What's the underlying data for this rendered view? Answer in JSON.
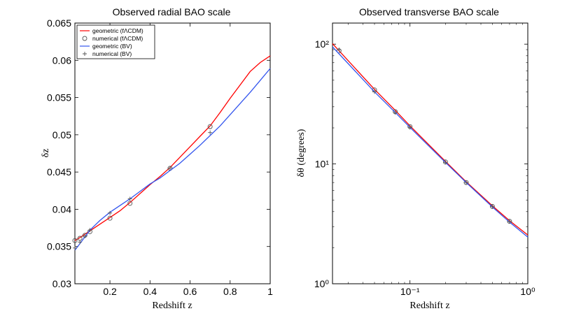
{
  "chart_data": [
    {
      "type": "line",
      "title": "Observed radial BAO scale",
      "xlabel": "Redshift z",
      "ylabel": "δz",
      "xlim": [
        0.025,
        1.0
      ],
      "ylim": [
        0.03,
        0.065
      ],
      "xticks": [
        0.2,
        0.4,
        0.6,
        0.8,
        1.0
      ],
      "xtick_labels": [
        "0.2",
        "0.4",
        "0.6",
        "0.8",
        "1"
      ],
      "yticks": [
        0.03,
        0.035,
        0.04,
        0.045,
        0.05,
        0.055,
        0.06,
        0.065
      ],
      "ytick_labels": [
        "0.03",
        "0.035",
        "0.04",
        "0.045",
        "0.05",
        "0.055",
        "0.06",
        "0.065"
      ],
      "legend_position": "top-left",
      "series": [
        {
          "name": "geometric (fΛCDM)",
          "kind": "line",
          "color": "#ff0000",
          "x": [
            0.025,
            0.05,
            0.1,
            0.15,
            0.2,
            0.25,
            0.3,
            0.35,
            0.4,
            0.45,
            0.5,
            0.55,
            0.6,
            0.65,
            0.7,
            0.75,
            0.8,
            0.85,
            0.9,
            0.95,
            1.0
          ],
          "y": [
            0.0358,
            0.0362,
            0.0371,
            0.038,
            0.0389,
            0.0398,
            0.0409,
            0.0421,
            0.0433,
            0.0444,
            0.0456,
            0.047,
            0.0484,
            0.0498,
            0.0512,
            0.053,
            0.0549,
            0.0567,
            0.0585,
            0.0597,
            0.0606
          ]
        },
        {
          "name": "numerical (fΛCDM)",
          "kind": "marker-circle",
          "color": "#555555",
          "x": [
            0.025,
            0.05,
            0.075,
            0.1,
            0.2,
            0.3,
            0.5,
            0.7
          ],
          "y": [
            0.0358,
            0.0361,
            0.0365,
            0.037,
            0.0388,
            0.0408,
            0.0455,
            0.0511
          ]
        },
        {
          "name": "geometric (BV)",
          "kind": "line",
          "color": "#3355ee",
          "x": [
            0.025,
            0.05,
            0.1,
            0.15,
            0.2,
            0.25,
            0.3,
            0.35,
            0.4,
            0.45,
            0.5,
            0.55,
            0.6,
            0.65,
            0.7,
            0.75,
            0.8,
            0.85,
            0.9,
            0.95,
            1.0
          ],
          "y": [
            0.0345,
            0.0354,
            0.0372,
            0.0385,
            0.0396,
            0.0405,
            0.0414,
            0.0424,
            0.0434,
            0.0442,
            0.0452,
            0.0462,
            0.0474,
            0.0486,
            0.0499,
            0.0512,
            0.0527,
            0.0542,
            0.0557,
            0.0573,
            0.0589
          ]
        },
        {
          "name": "numerical (BV)",
          "kind": "marker-plus",
          "color": "#555555",
          "x": [
            0.025,
            0.05,
            0.075,
            0.1,
            0.2,
            0.3,
            0.5,
            0.7
          ],
          "y": [
            0.0348,
            0.0356,
            0.0364,
            0.0372,
            0.0395,
            0.0414,
            0.0455,
            0.0503
          ]
        }
      ]
    },
    {
      "type": "line",
      "title": "Observed transverse BAO scale",
      "xlabel": "Redshift z",
      "ylabel": "δθ (degrees)",
      "xscale": "log",
      "yscale": "log",
      "xlim": [
        0.022,
        1.0
      ],
      "ylim": [
        1.0,
        150
      ],
      "xticks": [
        0.1,
        1.0
      ],
      "xtick_labels": [
        "10⁻¹",
        "10⁰"
      ],
      "yticks": [
        1,
        10,
        100
      ],
      "ytick_labels": [
        "10⁰",
        "10¹",
        "10²"
      ],
      "series": [
        {
          "name": "geometric (fΛCDM)",
          "kind": "line",
          "color": "#ff0000",
          "x": [
            0.022,
            0.05,
            0.075,
            0.1,
            0.2,
            0.3,
            0.5,
            0.7,
            1.0
          ],
          "y": [
            101,
            42,
            28,
            20.8,
            10.5,
            7.1,
            4.48,
            3.36,
            2.55
          ]
        },
        {
          "name": "numerical (fΛCDM)",
          "kind": "marker-circle",
          "color": "#555555",
          "x": [
            0.025,
            0.05,
            0.075,
            0.1,
            0.2,
            0.3,
            0.5,
            0.7
          ],
          "y": [
            88,
            41.5,
            27.3,
            20.5,
            10.4,
            7.0,
            4.42,
            3.32
          ]
        },
        {
          "name": "geometric (BV)",
          "kind": "line",
          "color": "#3355ee",
          "x": [
            0.022,
            0.05,
            0.075,
            0.1,
            0.2,
            0.3,
            0.5,
            0.7,
            1.0
          ],
          "y": [
            95,
            40,
            26.9,
            20.2,
            10.3,
            7.0,
            4.38,
            3.27,
            2.45
          ]
        },
        {
          "name": "numerical (BV)",
          "kind": "marker-plus",
          "color": "#555555",
          "x": [
            0.025,
            0.05,
            0.075,
            0.1,
            0.2,
            0.3,
            0.5,
            0.7
          ],
          "y": [
            90,
            40,
            26.8,
            20.2,
            10.3,
            7.0,
            4.4,
            3.3
          ]
        }
      ]
    }
  ]
}
